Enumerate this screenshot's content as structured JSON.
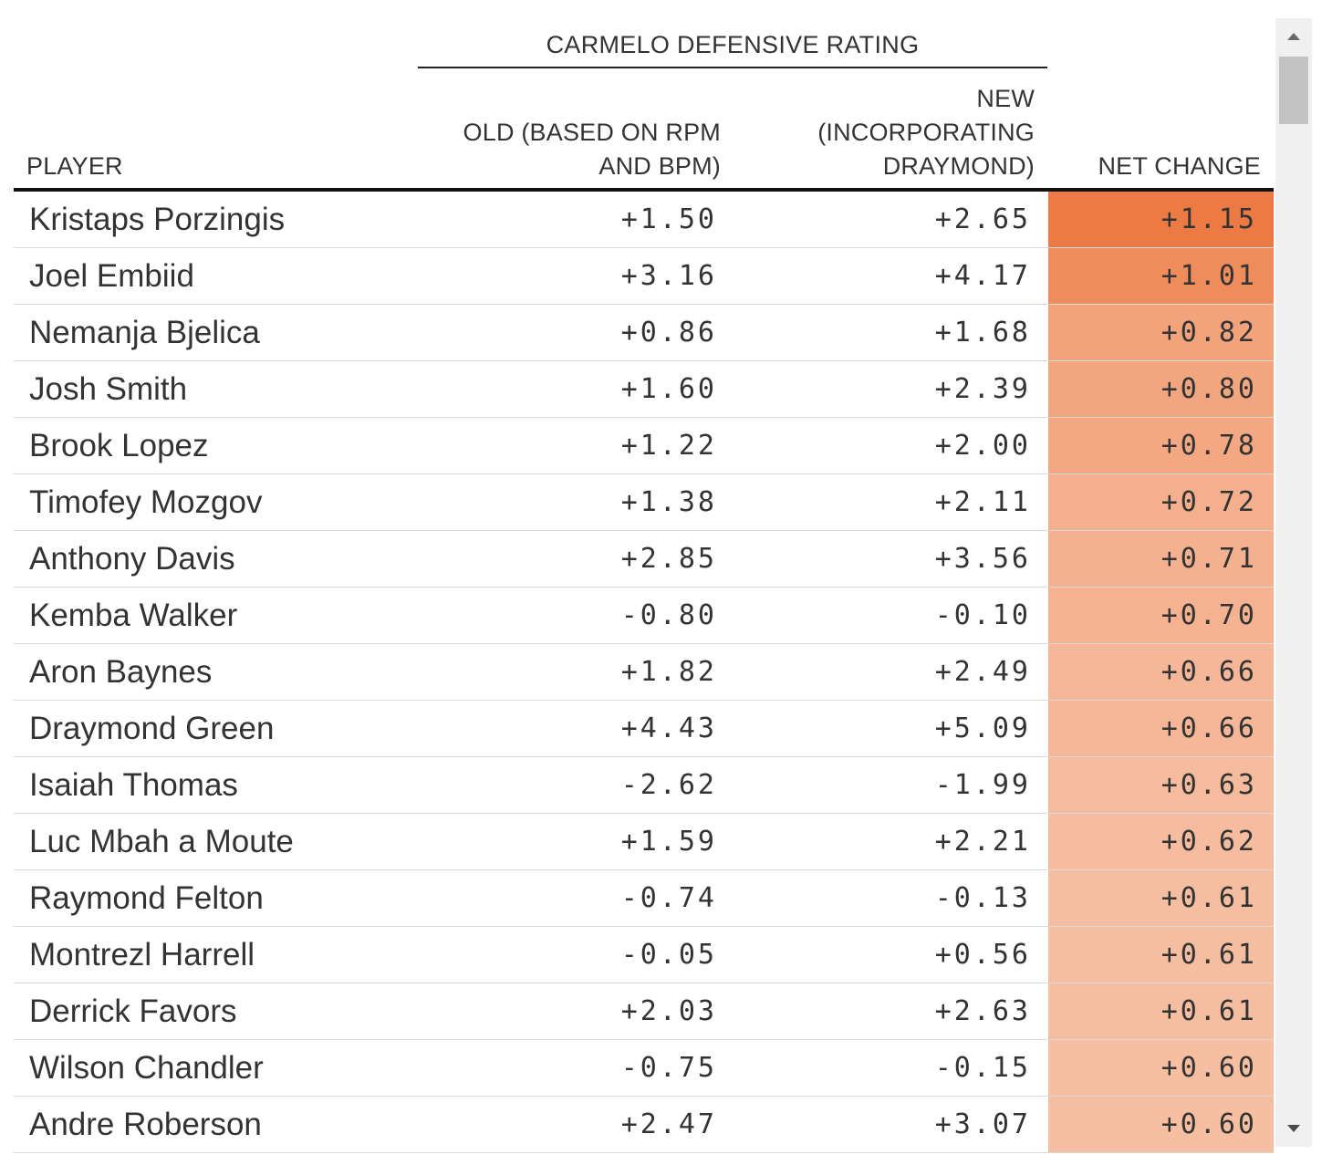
{
  "table": {
    "group_header": "CARMELO DEFENSIVE RATING",
    "columns": {
      "player": "PLAYER",
      "old_line1": "OLD (BASED ON RPM",
      "old_line2": "AND BPM)",
      "new_line1": "NEW",
      "new_line2": "(INCORPORATING",
      "new_line3": "DRAYMOND)",
      "net": "NET CHANGE"
    },
    "rows": [
      {
        "player": "Kristaps Porzingis",
        "old": "+1.50",
        "new": "+2.65",
        "net": "+1.15",
        "net_value": 1.15
      },
      {
        "player": "Joel Embiid",
        "old": "+3.16",
        "new": "+4.17",
        "net": "+1.01",
        "net_value": 1.01
      },
      {
        "player": "Nemanja Bjelica",
        "old": "+0.86",
        "new": "+1.68",
        "net": "+0.82",
        "net_value": 0.82
      },
      {
        "player": "Josh Smith",
        "old": "+1.60",
        "new": "+2.39",
        "net": "+0.80",
        "net_value": 0.8
      },
      {
        "player": "Brook Lopez",
        "old": "+1.22",
        "new": "+2.00",
        "net": "+0.78",
        "net_value": 0.78
      },
      {
        "player": "Timofey Mozgov",
        "old": "+1.38",
        "new": "+2.11",
        "net": "+0.72",
        "net_value": 0.72
      },
      {
        "player": "Anthony Davis",
        "old": "+2.85",
        "new": "+3.56",
        "net": "+0.71",
        "net_value": 0.71
      },
      {
        "player": "Kemba Walker",
        "old": "-0.80",
        "new": "-0.10",
        "net": "+0.70",
        "net_value": 0.7
      },
      {
        "player": "Aron Baynes",
        "old": "+1.82",
        "new": "+2.49",
        "net": "+0.66",
        "net_value": 0.66
      },
      {
        "player": "Draymond Green",
        "old": "+4.43",
        "new": "+5.09",
        "net": "+0.66",
        "net_value": 0.66
      },
      {
        "player": "Isaiah Thomas",
        "old": "-2.62",
        "new": "-1.99",
        "net": "+0.63",
        "net_value": 0.63
      },
      {
        "player": "Luc Mbah a Moute",
        "old": "+1.59",
        "new": "+2.21",
        "net": "+0.62",
        "net_value": 0.62
      },
      {
        "player": "Raymond Felton",
        "old": "-0.74",
        "new": "-0.13",
        "net": "+0.61",
        "net_value": 0.61
      },
      {
        "player": "Montrezl Harrell",
        "old": "-0.05",
        "new": "+0.56",
        "net": "+0.61",
        "net_value": 0.61
      },
      {
        "player": "Derrick Favors",
        "old": "+2.03",
        "new": "+2.63",
        "net": "+0.61",
        "net_value": 0.61
      },
      {
        "player": "Wilson Chandler",
        "old": "-0.75",
        "new": "-0.15",
        "net": "+0.60",
        "net_value": 0.6
      },
      {
        "player": "Andre Roberson",
        "old": "+2.47",
        "new": "+3.07",
        "net": "+0.60",
        "net_value": 0.6
      }
    ]
  },
  "colors": {
    "net_high": "#ec7a44",
    "net_low": "#f6bfa2"
  },
  "scrollbar": {
    "up_icon": "triangle-up-icon",
    "down_icon": "triangle-down-icon"
  }
}
